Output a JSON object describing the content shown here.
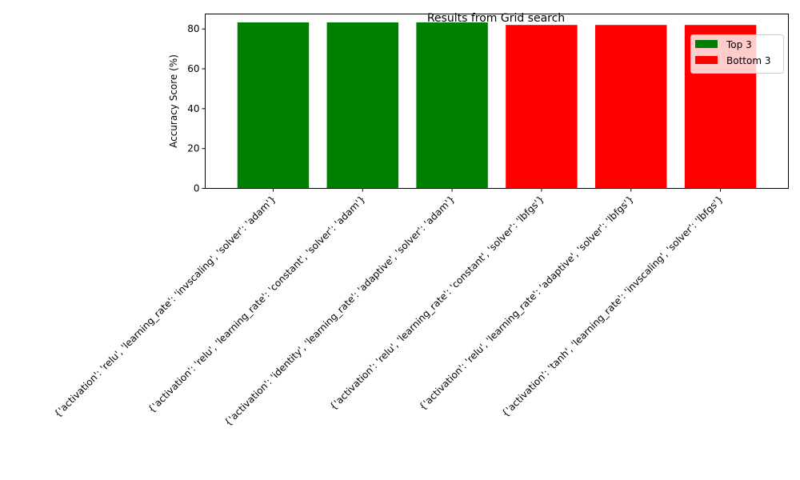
{
  "chart_data": {
    "type": "bar",
    "title": "Results from Grid search",
    "xlabel": "",
    "ylabel": "Accuracy Score (%)",
    "ylim": [
      0,
      87.5
    ],
    "yticks": [
      0,
      20,
      40,
      60,
      80
    ],
    "grid": false,
    "legend_position": "top-right",
    "categories": [
      "{'activation': 'relu', 'learning_rate': 'invscaling', 'solver': 'adam'}",
      "{'activation': 'relu', 'learning_rate': 'constant', 'solver': 'adam'}",
      "{'activation': 'identity', 'learning_rate': 'adaptive', 'solver': 'adam'}",
      "{'activation': 'relu', 'learning_rate': 'constant', 'solver': 'lbfgs'}",
      "{'activation': 'relu', 'learning_rate': 'adaptive', 'solver': 'lbfgs'}",
      "{'activation': 'tanh', 'learning_rate': 'invscaling', 'solver': 'lbfgs'}"
    ],
    "values": [
      83.3,
      83.3,
      83.3,
      82.0,
      82.0,
      82.0
    ],
    "groups": [
      "Top 3",
      "Top 3",
      "Top 3",
      "Bottom 3",
      "Bottom 3",
      "Bottom 3"
    ],
    "legend": [
      {
        "label": "Top 3",
        "color": "#008000"
      },
      {
        "label": "Bottom 3",
        "color": "#ff0000"
      }
    ]
  }
}
